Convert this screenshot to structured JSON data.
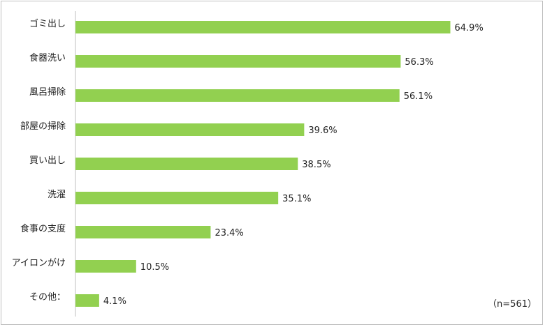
{
  "chart_data": {
    "type": "bar",
    "orientation": "horizontal",
    "categories": [
      "ゴミ出し",
      "食器洗い",
      "風呂掃除",
      "部屋の掃除",
      "買い出し",
      "洗濯",
      "食事の支度",
      "アイロンがけ",
      "その他："
    ],
    "values": [
      64.9,
      56.3,
      56.1,
      39.6,
      38.5,
      35.1,
      23.4,
      10.5,
      4.1
    ],
    "value_labels": [
      "64.9%",
      "56.3%",
      "56.1%",
      "39.6%",
      "38.5%",
      "35.1%",
      "23.4%",
      "10.5%",
      "4.1%"
    ],
    "unit": "%",
    "xlim": [
      0,
      75
    ],
    "grid": false,
    "note": "（n=561）",
    "bar_color": "#92d050"
  }
}
